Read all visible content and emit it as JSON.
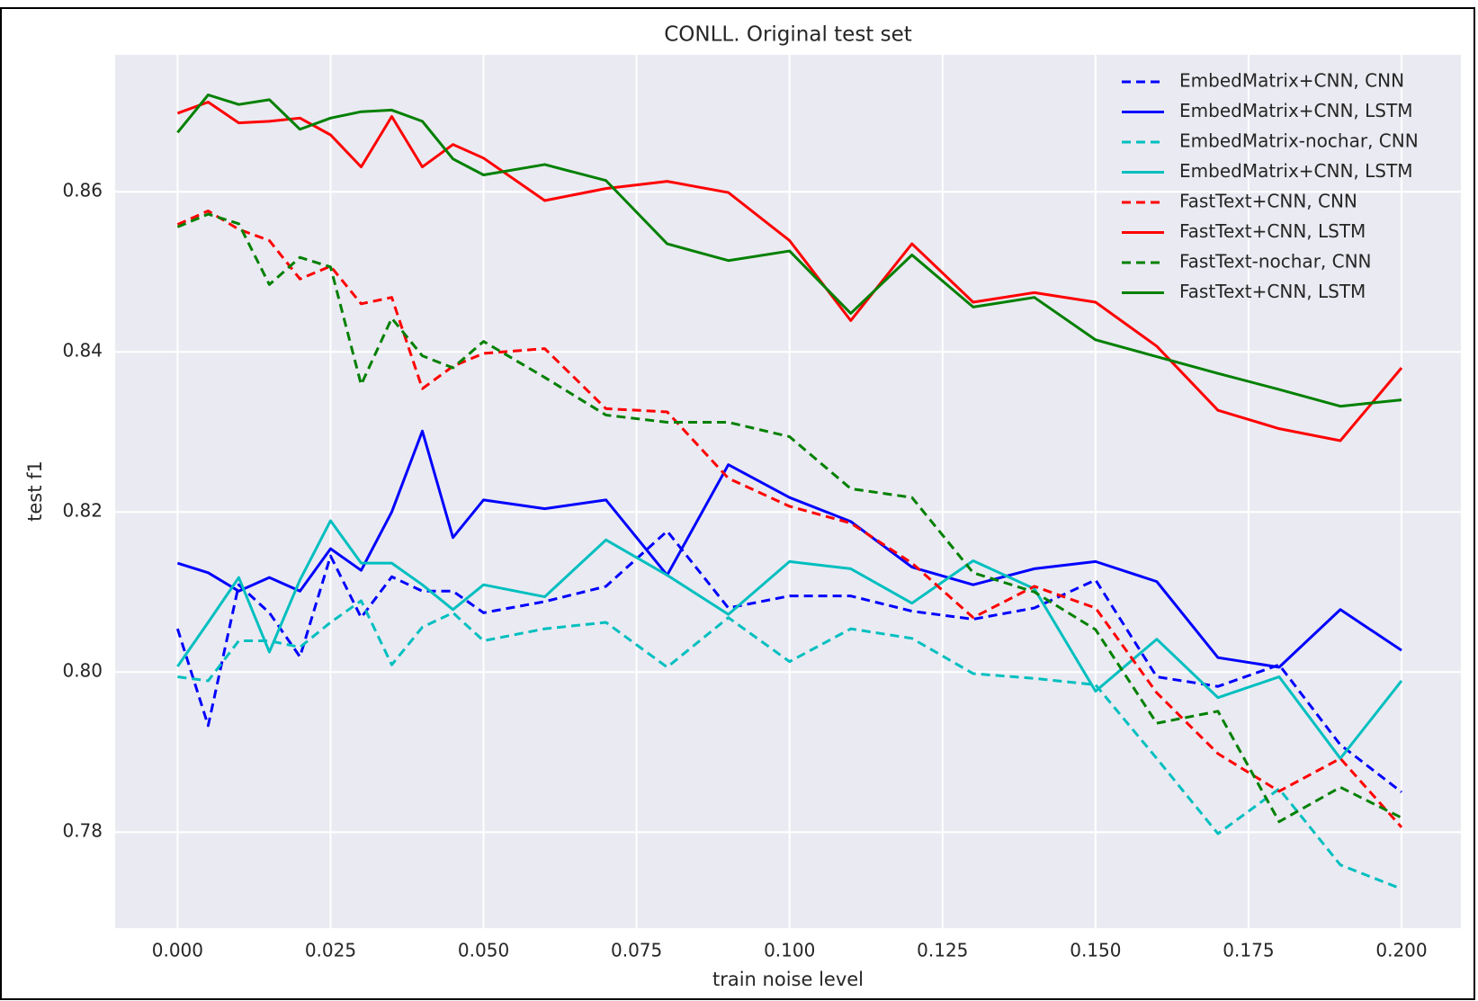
{
  "chart_data": {
    "type": "line",
    "title": "CONLL. Original test set",
    "x_label": "train noise level",
    "y_label": "test f1",
    "x": [
      0,
      0.005,
      0.01,
      0.015,
      0.02,
      0.025,
      0.03,
      0.035,
      0.04,
      0.045,
      0.05,
      0.06,
      0.07,
      0.08,
      0.09,
      0.1,
      0.11,
      0.12,
      0.13,
      0.14,
      0.15,
      0.16,
      0.17,
      0.18,
      0.19,
      0.2
    ],
    "series": [
      {
        "name": "EmbedMatrix+CNN, CNN",
        "color": "#0000ff",
        "linestyle": "dashed",
        "values": [
          0.8054,
          0.7933,
          0.8109,
          0.8074,
          0.8019,
          0.8145,
          0.8068,
          0.8119,
          0.8101,
          0.8101,
          0.8074,
          0.8088,
          0.8107,
          0.8176,
          0.808,
          0.8095,
          0.8095,
          0.8076,
          0.8066,
          0.808,
          0.8115,
          0.7994,
          0.7982,
          0.8009,
          0.7909,
          0.785
        ]
      },
      {
        "name": "EmbedMatrix+CNN, LSTM",
        "color": "#0000ff",
        "linestyle": "solid",
        "values": [
          0.8136,
          0.8124,
          0.8101,
          0.8118,
          0.8101,
          0.8154,
          0.8127,
          0.82,
          0.8301,
          0.8168,
          0.8215,
          0.8204,
          0.8215,
          0.8121,
          0.8259,
          0.8218,
          0.8188,
          0.8131,
          0.8109,
          0.8129,
          0.8138,
          0.8113,
          0.8018,
          0.8006,
          0.8078,
          0.8027
        ]
      },
      {
        "name": "EmbedMatrix-nochar, CNN",
        "color": "#00bfbf",
        "linestyle": "dashed",
        "values": [
          0.7994,
          0.7989,
          0.8039,
          0.8039,
          0.8031,
          0.8062,
          0.8089,
          0.8009,
          0.8056,
          0.8074,
          0.8039,
          0.8054,
          0.8062,
          0.8006,
          0.8068,
          0.8013,
          0.8054,
          0.8042,
          0.7998,
          0.7992,
          0.7984,
          0.7892,
          0.7798,
          0.7854,
          0.7759,
          0.7729
        ]
      },
      {
        "name": "EmbedMatrix+CNN, LSTM",
        "color": "#00bfbf",
        "linestyle": "solid",
        "values": [
          0.8007,
          0.8062,
          0.8118,
          0.8025,
          0.8115,
          0.8189,
          0.8136,
          0.8136,
          0.8109,
          0.8078,
          0.8109,
          0.8094,
          0.8165,
          0.8121,
          0.8072,
          0.8138,
          0.8129,
          0.8086,
          0.8139,
          0.8104,
          0.7976,
          0.8041,
          0.7968,
          0.7994,
          0.7892,
          0.7989
        ]
      },
      {
        "name": "FastText+CNN, CNN",
        "color": "#ff0000",
        "linestyle": "dashed",
        "values": [
          0.8559,
          0.8576,
          0.8553,
          0.8539,
          0.8491,
          0.8507,
          0.846,
          0.8468,
          0.8354,
          0.8382,
          0.8398,
          0.8404,
          0.8329,
          0.8325,
          0.8242,
          0.8207,
          0.8186,
          0.8136,
          0.8068,
          0.8107,
          0.808,
          0.7974,
          0.7898,
          0.7851,
          0.7892,
          0.7806
        ]
      },
      {
        "name": "FastText+CNN, LSTM",
        "color": "#ff0000",
        "linestyle": "solid",
        "values": [
          0.8698,
          0.8712,
          0.8686,
          0.8688,
          0.8692,
          0.8671,
          0.8631,
          0.8694,
          0.8631,
          0.8659,
          0.8642,
          0.8589,
          0.8604,
          0.8613,
          0.8599,
          0.8539,
          0.8439,
          0.8535,
          0.8462,
          0.8474,
          0.8462,
          0.8407,
          0.8327,
          0.8304,
          0.8289,
          0.838
        ]
      },
      {
        "name": "FastText-nochar, CNN",
        "color": "#008000",
        "linestyle": "dashed",
        "values": [
          0.8556,
          0.8572,
          0.856,
          0.8484,
          0.8518,
          0.8506,
          0.8359,
          0.8442,
          0.8395,
          0.838,
          0.8413,
          0.8368,
          0.8321,
          0.8312,
          0.8312,
          0.8294,
          0.8229,
          0.8218,
          0.8124,
          0.81,
          0.8053,
          0.7936,
          0.7951,
          0.7813,
          0.7856,
          0.7818
        ]
      },
      {
        "name": "FastText+CNN, LSTM",
        "color": "#008000",
        "linestyle": "solid",
        "values": [
          0.8674,
          0.8721,
          0.8709,
          0.8715,
          0.8678,
          0.8692,
          0.87,
          0.8702,
          0.8688,
          0.8641,
          0.8621,
          0.8634,
          0.8614,
          0.8535,
          0.8514,
          0.8526,
          0.8448,
          0.8521,
          0.8456,
          0.8468,
          0.8415,
          0.8394,
          0.8373,
          0.8353,
          0.8332,
          0.834
        ]
      }
    ],
    "xlim": [
      -0.0102,
      0.2097
    ],
    "ylim": [
      0.768,
      0.8771
    ],
    "xticks": [
      {
        "value": 0,
        "label": "0.000"
      },
      {
        "value": 0.025,
        "label": "0.025"
      },
      {
        "value": 0.05,
        "label": "0.050"
      },
      {
        "value": 0.075,
        "label": "0.075"
      },
      {
        "value": 0.1,
        "label": "0.100"
      },
      {
        "value": 0.125,
        "label": "0.125"
      },
      {
        "value": 0.15,
        "label": "0.150"
      },
      {
        "value": 0.175,
        "label": "0.175"
      },
      {
        "value": 0.2,
        "label": "0.200"
      }
    ],
    "yticks": [
      0.78,
      {
        "value": 0.8,
        "label": "0.80"
      },
      0.82,
      0.84,
      0.86
    ],
    "grid": true,
    "legend": "upper right"
  }
}
